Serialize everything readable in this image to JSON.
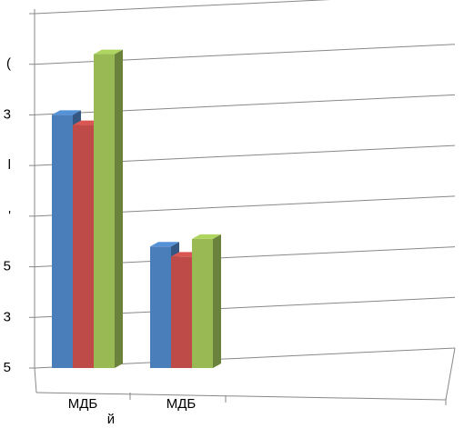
{
  "chart_data": {
    "type": "bar3d",
    "categories": [
      "МДБ",
      "МДБ",
      null
    ],
    "x_label": "й",
    "series": [
      {
        "color": "#4a7ebb",
        "values": [
          5.0,
          2.4,
          null
        ]
      },
      {
        "color": "#be4b48",
        "values": [
          4.8,
          2.2,
          null
        ]
      },
      {
        "color": "#98b954",
        "values": [
          6.2,
          2.55,
          null
        ]
      }
    ],
    "ylim": [
      0,
      7
    ],
    "yticks": [
      {
        "value": 0,
        "label": "5"
      },
      {
        "value": 1,
        "label": "3"
      },
      {
        "value": 2,
        "label": "5"
      },
      {
        "value": 3,
        "label": "'"
      },
      {
        "value": 4,
        "label": "l"
      },
      {
        "value": 5,
        "label": "3"
      },
      {
        "value": 6,
        "label": "("
      },
      7
    ],
    "grid": true
  }
}
